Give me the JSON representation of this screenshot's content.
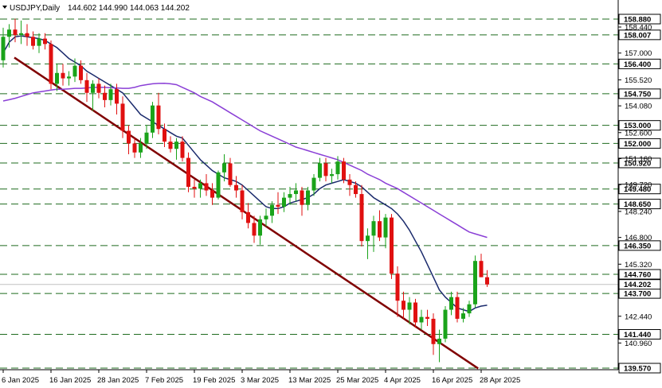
{
  "chart_data": {
    "type": "candlestick",
    "title": "USDJPY,Daily",
    "ohlc_readout": "144.602 144.990 144.063 144.202",
    "current_price": "144.202",
    "ylim": [
      139.0,
      160.0
    ],
    "y_tick_labels": [
      "158.440",
      "157.000",
      "155.520",
      "154.080",
      "152.600",
      "151.160",
      "149.720",
      "148.240",
      "146.800",
      "145.320",
      "142.440",
      "140.960"
    ],
    "level_labels": [
      "158.880",
      "158.007",
      "156.400",
      "154.750",
      "153.000",
      "152.000",
      "150.920",
      "149.480",
      "148.650",
      "146.350",
      "144.760",
      "143.700",
      "141.440",
      "139.570"
    ],
    "level_values": [
      158.88,
      158.007,
      156.4,
      154.75,
      153.0,
      152.0,
      150.92,
      149.48,
      148.65,
      146.35,
      144.76,
      143.7,
      141.44,
      139.57
    ],
    "x_tick_labels": [
      "6 Jan 2025",
      "16 Jan 2025",
      "28 Jan 2025",
      "7 Feb 2025",
      "19 Feb 2025",
      "3 Mar 2025",
      "13 Mar 2025",
      "25 Mar 2025",
      "4 Apr 2025",
      "16 Apr 2025",
      "28 Apr 2025"
    ],
    "x_tick_index": [
      0,
      8,
      16,
      24,
      32,
      40,
      48,
      56,
      64,
      72,
      80
    ],
    "candles": [
      [
        156.6,
        158.4,
        156.2,
        157.9
      ],
      [
        157.9,
        158.6,
        157.3,
        158.3
      ],
      [
        158.3,
        158.9,
        157.6,
        158.0
      ],
      [
        158.0,
        158.8,
        157.5,
        158.1
      ],
      [
        158.1,
        158.6,
        157.4,
        157.9
      ],
      [
        157.9,
        158.2,
        157.2,
        157.4
      ],
      [
        157.4,
        158.1,
        157.0,
        157.8
      ],
      [
        157.8,
        158.1,
        157.2,
        157.5
      ],
      [
        157.5,
        157.7,
        155.0,
        155.3
      ],
      [
        155.3,
        156.4,
        154.9,
        155.9
      ],
      [
        155.9,
        156.4,
        155.2,
        155.6
      ],
      [
        155.6,
        156.0,
        155.2,
        155.7
      ],
      [
        155.7,
        156.7,
        155.4,
        156.3
      ],
      [
        156.3,
        156.6,
        155.3,
        155.5
      ],
      [
        155.5,
        155.9,
        154.3,
        154.8
      ],
      [
        154.8,
        155.5,
        153.8,
        155.3
      ],
      [
        155.3,
        155.6,
        154.5,
        154.8
      ],
      [
        154.8,
        155.2,
        154.0,
        154.4
      ],
      [
        154.4,
        155.3,
        154.1,
        155.0
      ],
      [
        155.0,
        155.3,
        153.6,
        154.2
      ],
      [
        154.2,
        154.6,
        152.3,
        152.7
      ],
      [
        152.7,
        153.0,
        151.4,
        152.0
      ],
      [
        152.0,
        152.3,
        151.2,
        151.5
      ],
      [
        151.5,
        152.3,
        151.2,
        152.0
      ],
      [
        152.0,
        153.0,
        151.7,
        152.6
      ],
      [
        152.6,
        154.3,
        152.3,
        154.1
      ],
      [
        154.1,
        154.8,
        152.5,
        152.8
      ],
      [
        152.8,
        153.1,
        151.8,
        152.1
      ],
      [
        152.1,
        152.4,
        151.5,
        151.7
      ],
      [
        151.7,
        152.3,
        151.1,
        152.1
      ],
      [
        152.1,
        152.4,
        151.0,
        151.2
      ],
      [
        151.2,
        151.5,
        149.3,
        149.6
      ],
      [
        149.6,
        150.0,
        149.0,
        149.5
      ],
      [
        149.5,
        150.0,
        149.0,
        149.8
      ],
      [
        149.8,
        150.3,
        149.1,
        149.4
      ],
      [
        149.4,
        149.8,
        148.6,
        149.0
      ],
      [
        149.0,
        150.5,
        148.9,
        150.4
      ],
      [
        150.4,
        151.4,
        149.9,
        150.9
      ],
      [
        150.9,
        151.2,
        149.6,
        149.7
      ],
      [
        149.7,
        150.2,
        149.0,
        149.4
      ],
      [
        149.4,
        149.7,
        147.8,
        148.2
      ],
      [
        148.2,
        148.7,
        147.3,
        147.6
      ],
      [
        147.6,
        148.0,
        146.5,
        146.9
      ],
      [
        146.9,
        148.0,
        146.4,
        147.8
      ],
      [
        147.8,
        148.4,
        147.4,
        148.0
      ],
      [
        148.0,
        148.8,
        147.6,
        148.6
      ],
      [
        148.6,
        149.3,
        148.1,
        148.5
      ],
      [
        148.5,
        149.3,
        148.2,
        149.0
      ],
      [
        149.0,
        149.6,
        148.6,
        149.2
      ],
      [
        149.2,
        149.8,
        148.8,
        149.4
      ],
      [
        149.4,
        149.6,
        148.0,
        148.6
      ],
      [
        148.6,
        149.6,
        148.3,
        149.4
      ],
      [
        149.4,
        150.3,
        149.1,
        150.1
      ],
      [
        150.1,
        151.2,
        149.9,
        150.9
      ],
      [
        150.9,
        151.2,
        149.9,
        150.2
      ],
      [
        150.2,
        150.6,
        149.8,
        150.3
      ],
      [
        150.3,
        151.3,
        150.0,
        151.0
      ],
      [
        151.0,
        151.2,
        149.8,
        150.0
      ],
      [
        150.0,
        150.3,
        149.1,
        149.7
      ],
      [
        149.7,
        149.9,
        149.0,
        149.2
      ],
      [
        149.2,
        149.7,
        146.3,
        146.6
      ],
      [
        146.6,
        147.3,
        145.6,
        146.9
      ],
      [
        146.9,
        148.0,
        146.0,
        147.7
      ],
      [
        147.7,
        148.3,
        146.6,
        146.8
      ],
      [
        146.8,
        148.1,
        146.2,
        147.9
      ],
      [
        147.9,
        148.1,
        144.5,
        144.8
      ],
      [
        144.8,
        145.2,
        142.4,
        143.3
      ],
      [
        143.3,
        143.8,
        142.3,
        142.8
      ],
      [
        142.8,
        143.5,
        142.0,
        143.2
      ],
      [
        143.2,
        143.4,
        141.8,
        142.1
      ],
      [
        142.1,
        142.8,
        141.7,
        142.4
      ],
      [
        142.4,
        142.8,
        141.9,
        142.3
      ],
      [
        142.3,
        142.6,
        140.3,
        140.9
      ],
      [
        140.9,
        141.7,
        139.9,
        141.2
      ],
      [
        141.2,
        143.0,
        141.0,
        142.8
      ],
      [
        142.8,
        143.8,
        142.5,
        143.5
      ],
      [
        143.5,
        143.8,
        142.1,
        142.3
      ],
      [
        142.3,
        142.9,
        142.1,
        142.6
      ],
      [
        142.6,
        143.3,
        142.4,
        143.1
      ],
      [
        143.1,
        145.8,
        142.9,
        145.5
      ],
      [
        145.5,
        145.9,
        144.8,
        144.6
      ],
      [
        144.6,
        144.99,
        144.063,
        144.202
      ]
    ],
    "series": [
      {
        "type": "sma-fast",
        "values": [
          157.0,
          157.6,
          157.9,
          157.95,
          157.9,
          157.85,
          157.8,
          157.7,
          157.5,
          157.3,
          157.0,
          156.7,
          156.5,
          156.3,
          156.0,
          155.8,
          155.6,
          155.4,
          155.2,
          155.0,
          154.8,
          154.4,
          154.0,
          153.6,
          153.4,
          153.2,
          153.0,
          152.8,
          152.6,
          152.4,
          152.3,
          151.9,
          151.5,
          151.1,
          150.8,
          150.5,
          150.3,
          150.1,
          150.0,
          149.9,
          149.7,
          149.4,
          149.1,
          148.8,
          148.5,
          148.4,
          148.4,
          148.5,
          148.7,
          148.8,
          148.9,
          149.0,
          149.2,
          149.5,
          149.7,
          149.8,
          149.9,
          150.0,
          149.9,
          149.8,
          149.6,
          149.3,
          149.0,
          148.8,
          148.6,
          148.4,
          148.1,
          147.7,
          147.2,
          146.6,
          146.0,
          145.3,
          144.6,
          143.9,
          143.5,
          143.2,
          142.9,
          142.8,
          142.7,
          142.9,
          143.0,
          143.05
        ]
      },
      {
        "type": "sma-slow",
        "values": [
          154.35,
          154.42,
          154.5,
          154.6,
          154.7,
          154.8,
          154.85,
          154.9,
          154.95,
          155.0,
          155.0,
          155.02,
          155.05,
          155.05,
          155.07,
          155.1,
          155.1,
          155.1,
          155.08,
          155.07,
          155.05,
          155.05,
          155.1,
          155.2,
          155.25,
          155.3,
          155.32,
          155.33,
          155.3,
          155.25,
          155.1,
          154.95,
          154.8,
          154.6,
          154.45,
          154.3,
          154.1,
          153.9,
          153.7,
          153.5,
          153.3,
          153.1,
          152.9,
          152.7,
          152.55,
          152.4,
          152.25,
          152.1,
          151.95,
          151.8,
          151.7,
          151.6,
          151.5,
          151.4,
          151.3,
          151.2,
          151.1,
          150.95,
          150.8,
          150.65,
          150.5,
          150.3,
          150.15,
          150.0,
          149.8,
          149.65,
          149.5,
          149.3,
          149.1,
          148.9,
          148.7,
          148.5,
          148.3,
          148.1,
          147.9,
          147.7,
          147.5,
          147.3,
          147.1,
          147.0,
          146.9,
          146.8
        ]
      }
    ],
    "trendline": {
      "from": [
        156.75,
        0
      ],
      "to": [
        139.55,
        79.5
      ]
    }
  }
}
